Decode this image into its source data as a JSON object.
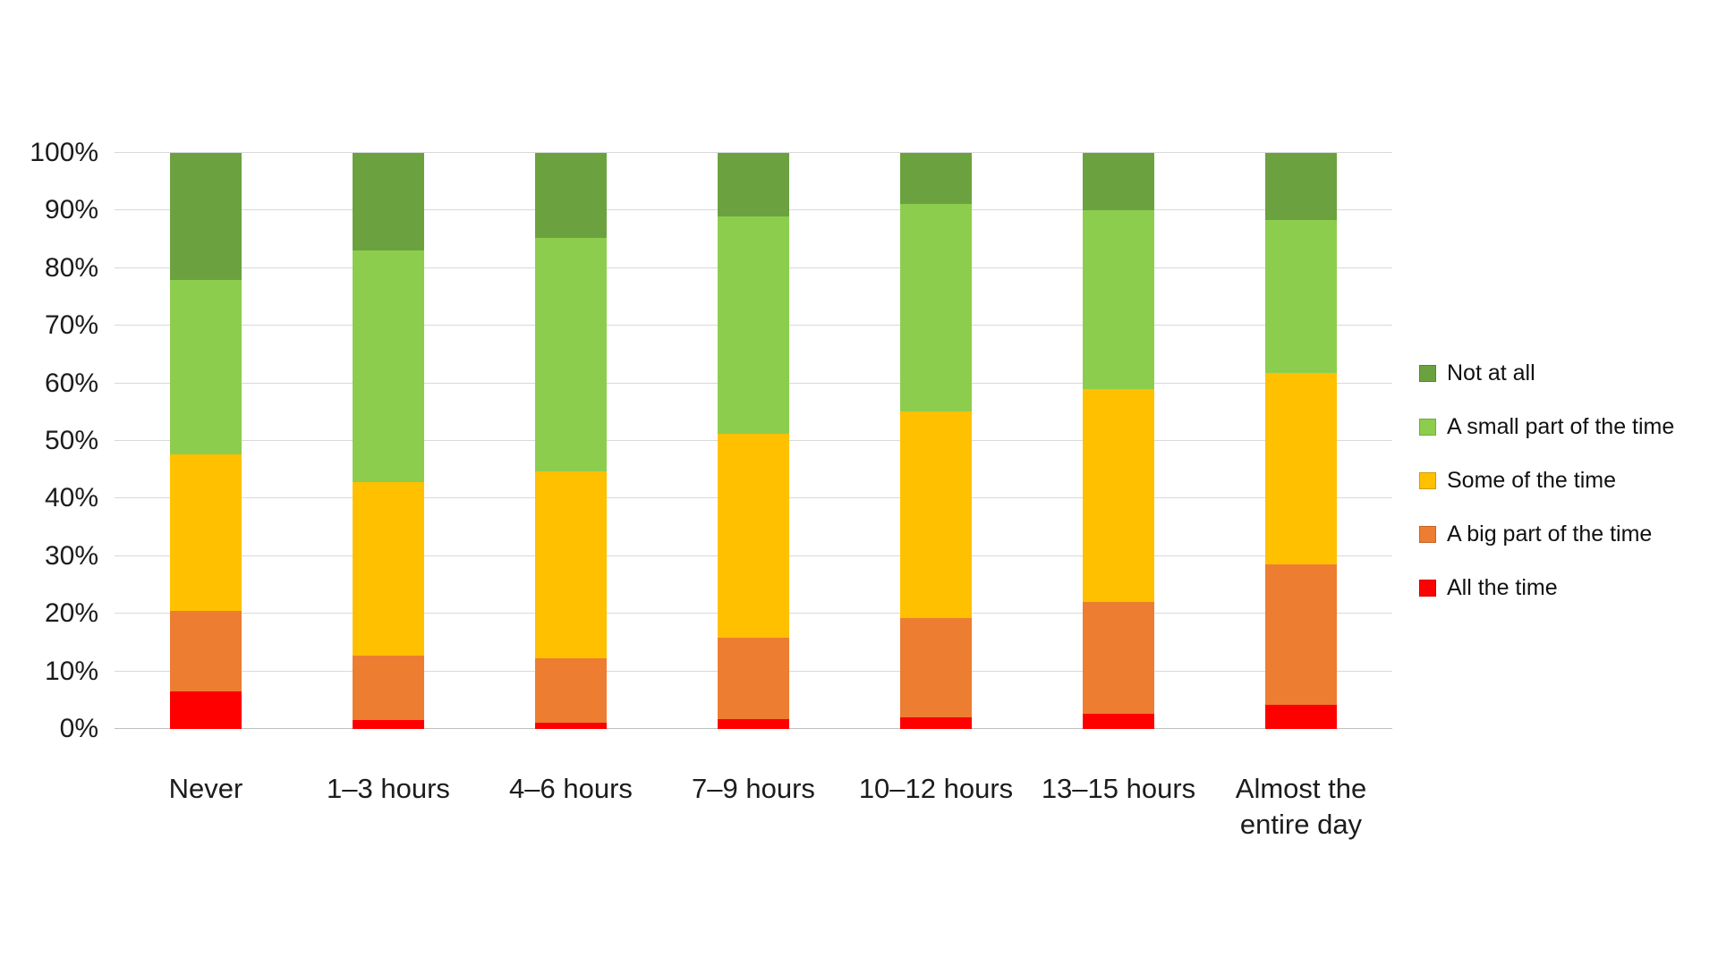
{
  "chart_data": {
    "type": "bar",
    "variant": "stacked-100-percent-column",
    "title": "",
    "xlabel": "",
    "ylabel": "",
    "unit": "%",
    "grid": true,
    "legend_position": "right",
    "categories": [
      "Never",
      "1–3 hours",
      "4–6 hours",
      "7–9 hours",
      "10–12 hours",
      "13–15 hours",
      "Almost the entire day"
    ],
    "series": [
      {
        "name": "Not at all",
        "color": "#6BA23F",
        "values": [
          22.0,
          16.9,
          14.7,
          11.0,
          8.8,
          10.0,
          11.7
        ]
      },
      {
        "name": "A small part of the time",
        "color": "#8DCD4E",
        "values": [
          30.3,
          40.3,
          40.6,
          37.7,
          36.1,
          31.0,
          26.5
        ]
      },
      {
        "name": "Some of the time",
        "color": "#FFC000",
        "values": [
          27.2,
          30.0,
          32.5,
          35.4,
          35.9,
          36.9,
          33.3
        ]
      },
      {
        "name": "A big part of the time",
        "color": "#ED7D31",
        "values": [
          13.9,
          11.3,
          11.1,
          14.2,
          17.2,
          19.5,
          24.3
        ]
      },
      {
        "name": "All the time",
        "color": "#FF0000",
        "values": [
          6.6,
          1.5,
          1.1,
          1.7,
          2.0,
          2.6,
          4.2
        ]
      }
    ],
    "stack_order_bottom_to_top": [
      "All the time",
      "A big part of the time",
      "Some of the time",
      "A small part of the time",
      "Not at all"
    ],
    "y_axis": {
      "min": 0,
      "max": 100,
      "tick_step": 10,
      "ticks": [
        "0%",
        "10%",
        "20%",
        "30%",
        "40%",
        "50%",
        "60%",
        "70%",
        "80%",
        "90%",
        "100%"
      ]
    }
  },
  "colors": {
    "background": "#FFFFFF",
    "gridline": "#D9D9D9",
    "axis_line": "#BFBFBF",
    "text": "#1C1C1C"
  }
}
